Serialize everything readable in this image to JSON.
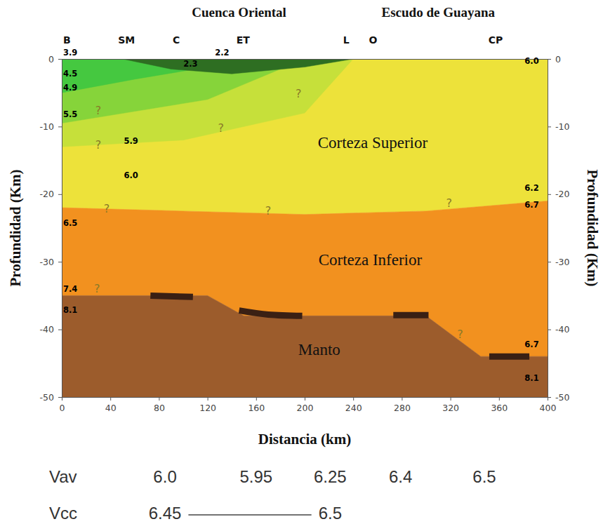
{
  "chart_data": {
    "type": "cross_section",
    "xlabel": "Distancia (km)",
    "ylabel": "Profundidad (Km)",
    "y2label": "Profundidad (Km)",
    "xlim": [
      0,
      400
    ],
    "xticks": [
      0,
      40,
      80,
      120,
      160,
      200,
      240,
      280,
      320,
      360,
      400
    ],
    "ylim": [
      -50,
      0
    ],
    "yticks": [
      0,
      -10,
      -20,
      -30,
      -40,
      -50
    ],
    "y2lim": [
      -50,
      0
    ],
    "y2ticks": [
      0,
      -10,
      -20,
      -30,
      -40,
      -50
    ],
    "region_labels": [
      {
        "x": 146,
        "text": "Cuenca Oriental"
      },
      {
        "x": 310,
        "text": "Escudo de Guayana"
      }
    ],
    "stations": [
      {
        "value": 4,
        "label": "B"
      },
      {
        "value": 53,
        "label": "SM"
      },
      {
        "value": 94,
        "label": "C"
      },
      {
        "value": 149,
        "label": "ET"
      },
      {
        "value": 234,
        "label": "L"
      },
      {
        "value": 256,
        "label": "O"
      },
      {
        "value": 357,
        "label": "CP"
      }
    ],
    "layers": [
      {
        "color": "#ede23a",
        "x": [
          0,
          400,
          400,
          300,
          200,
          100,
          0
        ],
        "y": [
          0,
          0,
          -21,
          -22.5,
          -23,
          -22.5,
          -22
        ]
      },
      {
        "color": "#c6e03a",
        "x": [
          0,
          240,
          200,
          100,
          0
        ],
        "y": [
          0,
          0,
          -8,
          -12,
          -13
        ]
      },
      {
        "color": "#86d43a",
        "x": [
          0,
          200,
          120,
          0
        ],
        "y": [
          0,
          0,
          -6,
          -9.5
        ]
      },
      {
        "color": "#45c840",
        "x": [
          0,
          160,
          60,
          0
        ],
        "y": [
          0,
          0,
          -3,
          -5
        ]
      },
      {
        "color": "#2e6e22",
        "x": [
          50,
          240,
          200,
          140,
          90
        ],
        "y": [
          0,
          0,
          -1.2,
          -2.2,
          -1.5
        ]
      },
      {
        "color": "#f2911f",
        "x": [
          0,
          100,
          200,
          300,
          400,
          400,
          345,
          300,
          150,
          120,
          0
        ],
        "y": [
          -22,
          -22.5,
          -23,
          -22.5,
          -21,
          -44,
          -44,
          -38,
          -38,
          -35,
          -35
        ]
      },
      {
        "color": "#9c5c2c",
        "x": [
          0,
          120,
          150,
          300,
          345,
          400,
          400,
          0
        ],
        "y": [
          -35,
          -35,
          -38,
          -38,
          -44,
          -44,
          -50,
          -50
        ]
      }
    ],
    "reflectors": [
      {
        "x": [
          73,
          108
        ],
        "y": [
          -35.0,
          -35.2
        ]
      },
      {
        "x": [
          146,
          170,
          198
        ],
        "y": [
          -37.2,
          -37.8,
          -38.0
        ]
      },
      {
        "x": [
          273,
          302
        ],
        "y": [
          -37.9,
          -37.9
        ]
      },
      {
        "x": [
          352,
          385
        ],
        "y": [
          -44.0,
          -44.0
        ]
      }
    ],
    "velocity_labels": [
      {
        "x": 7,
        "y": 0.9,
        "text": "3.9"
      },
      {
        "x": 7,
        "y": -2.2,
        "text": "4.5"
      },
      {
        "x": 7,
        "y": -4.3,
        "text": "4.9"
      },
      {
        "x": 7,
        "y": -8.2,
        "text": "5.5"
      },
      {
        "x": 7,
        "y": -24.3,
        "text": "6.5"
      },
      {
        "x": 7,
        "y": -34.1,
        "text": "7.4"
      },
      {
        "x": 7,
        "y": -37.2,
        "text": "8.1"
      },
      {
        "x": 57,
        "y": -12.2,
        "text": "5.9"
      },
      {
        "x": 57,
        "y": -17.3,
        "text": "6.0"
      },
      {
        "x": 132,
        "y": 0.9,
        "text": "2.2"
      },
      {
        "x": 106,
        "y": -0.8,
        "text": "2.3"
      },
      {
        "x": 387,
        "y": -0.4,
        "text": "6.0"
      },
      {
        "x": 387,
        "y": -19.1,
        "text": "6.2"
      },
      {
        "x": 387,
        "y": -21.6,
        "text": "6.7"
      },
      {
        "x": 387,
        "y": -42.3,
        "text": "6.7"
      },
      {
        "x": 387,
        "y": -47.3,
        "text": "8.1"
      }
    ],
    "question_marks": [
      {
        "x": 30,
        "y": -7.7,
        "text": "?"
      },
      {
        "x": 30,
        "y": -12.8,
        "text": "?"
      },
      {
        "x": 37,
        "y": -22.2,
        "text": "?"
      },
      {
        "x": 29,
        "y": -34.1,
        "text": "?"
      },
      {
        "x": 195,
        "y": -5.2,
        "text": "?"
      },
      {
        "x": 131,
        "y": -10.3,
        "text": "?"
      },
      {
        "x": 170,
        "y": -22.6,
        "text": "?"
      },
      {
        "x": 319,
        "y": -21.4,
        "text": "?"
      },
      {
        "x": 328,
        "y": -40.8,
        "text": "?"
      }
    ],
    "layer_labels": [
      {
        "x": 256,
        "y": -12.6,
        "text": "Corteza Superior"
      },
      {
        "x": 254,
        "y": -29.9,
        "text": "Corteza Inferior"
      },
      {
        "x": 212,
        "y": -43.2,
        "text": "Manto"
      }
    ],
    "rows": [
      {
        "label": "Vav",
        "x": [
          85,
          160,
          221,
          279,
          348
        ],
        "values": [
          6.0,
          5.95,
          6.25,
          6.4,
          6.5
        ],
        "value_labels": [
          "6.0",
          "5.95",
          "6.25",
          "6.4",
          "6.5"
        ]
      },
      {
        "label": "Vcc",
        "x": [
          85,
          221
        ],
        "values": [
          6.45,
          6.5
        ],
        "value_labels": [
          "6.45",
          "6.5"
        ],
        "line_style": "solid"
      }
    ]
  }
}
